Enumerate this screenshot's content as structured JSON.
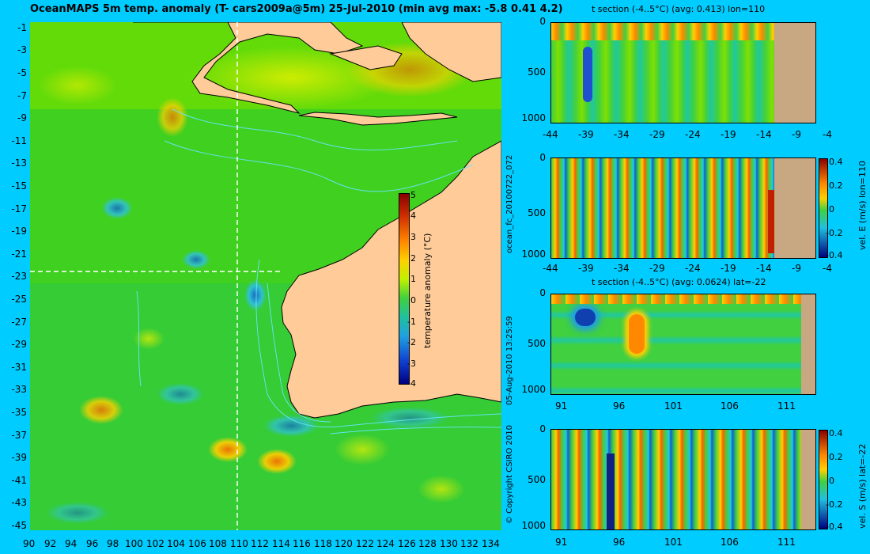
{
  "main_map": {
    "title": "OceanMAPS 5m temp. anomaly (T- cars2009a@5m) 25-Jul-2010 (min avg max: -5.8 0.41 4.2)",
    "x_ticks": [
      "90",
      "92",
      "94",
      "96",
      "98",
      "100",
      "102",
      "104",
      "106",
      "108",
      "110",
      "112",
      "114",
      "116",
      "118",
      "120",
      "122",
      "124",
      "126",
      "128",
      "130",
      "132",
      "134"
    ],
    "y_ticks": [
      "-1",
      "-3",
      "-5",
      "-7",
      "-9",
      "-11",
      "-13",
      "-15",
      "-17",
      "-19",
      "-21",
      "-23",
      "-25",
      "-27",
      "-29",
      "-31",
      "-33",
      "-35",
      "-37",
      "-39",
      "-41",
      "-43",
      "-45"
    ],
    "section_lon": 110,
    "section_lat": -22,
    "colorbar": {
      "label": "temperature anomaly (°C)",
      "ticks": [
        "5",
        "4",
        "3",
        "2",
        "1",
        "0",
        "-1",
        "-2",
        "-3",
        "-4"
      ]
    }
  },
  "side_labels": {
    "run_id": "ocean_fc_20100722_072",
    "timestamp": "05-Aug-2010 13:25:59",
    "copyright": "© Copyright CSIRO 2010"
  },
  "panels": [
    {
      "title": "t section (-4..5°C) (avg: 0.413) lon=110",
      "x_ticks": [
        "-44",
        "-39",
        "-34",
        "-29",
        "-24",
        "-19",
        "-14",
        "-9",
        "-4"
      ],
      "y_ticks": [
        "0",
        "500",
        "1000"
      ],
      "cbar_label": "",
      "cbar_ticks": []
    },
    {
      "title": "",
      "x_ticks": [
        "-44",
        "-39",
        "-34",
        "-29",
        "-24",
        "-19",
        "-14",
        "-9",
        "-4"
      ],
      "y_ticks": [
        "0",
        "500",
        "1000"
      ],
      "cbar_label": "vel. E (m/s) lon=110",
      "cbar_ticks": [
        "0.4",
        "0.2",
        "0",
        "-0.2",
        "-0.4"
      ]
    },
    {
      "title": "t section (-4..5°C) (avg: 0.0624) lat=-22",
      "x_ticks": [
        "91",
        "96",
        "101",
        "106",
        "111"
      ],
      "y_ticks": [
        "0",
        "500",
        "1000"
      ],
      "cbar_label": "",
      "cbar_ticks": []
    },
    {
      "title": "",
      "x_ticks": [
        "91",
        "96",
        "101",
        "106",
        "111"
      ],
      "y_ticks": [
        "0",
        "500",
        "1000"
      ],
      "cbar_label": "vel. S (m/s) lat=-22",
      "cbar_ticks": [
        "0.4",
        "0.2",
        "0",
        "-0.2",
        "-0.4"
      ]
    }
  ],
  "colors": {
    "background": "#00ccff",
    "land": "#ffcc99",
    "section_land": "#c8a882",
    "contour": "#66e6ff"
  }
}
